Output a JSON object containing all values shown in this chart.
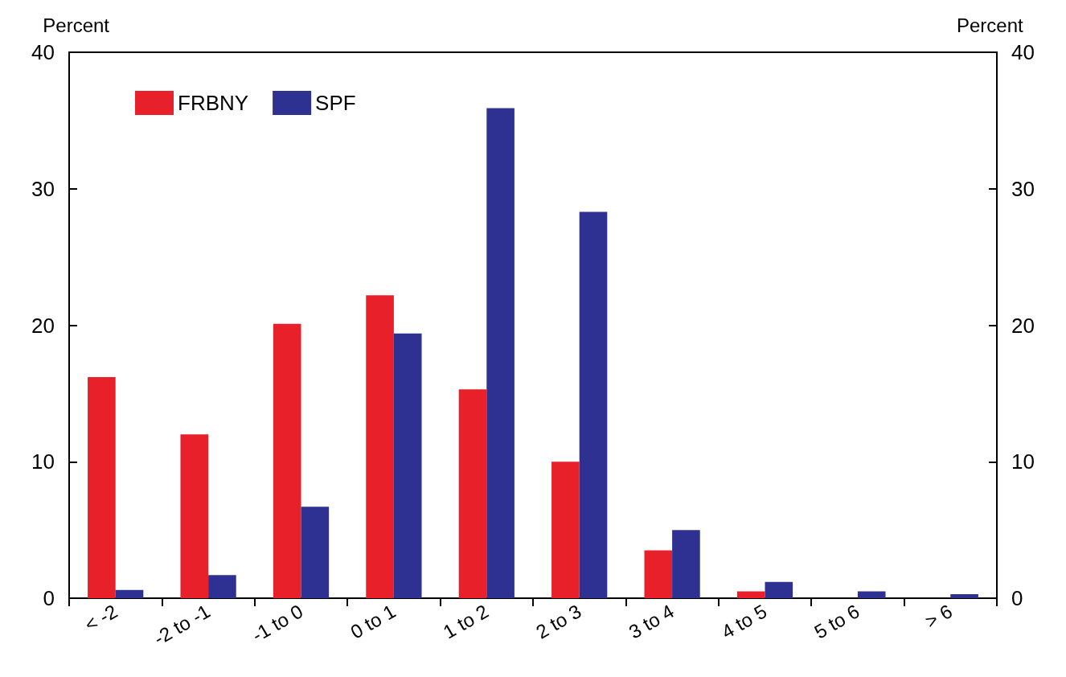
{
  "chart_data": {
    "type": "bar",
    "ylabel": "Percent",
    "y2label": "Percent",
    "categories": [
      "< -2",
      "-2 to -1",
      "-1 to 0",
      "0 to 1",
      "1 to 2",
      "2 to 3",
      "3 to 4",
      "4 to 5",
      "5 to 6",
      "> 6"
    ],
    "series": [
      {
        "name": "FRBNY",
        "color": "#e8202a",
        "values": [
          16.2,
          12.0,
          20.1,
          22.2,
          15.3,
          10.0,
          3.5,
          0.5,
          0,
          0
        ]
      },
      {
        "name": "SPF",
        "color": "#2e3192",
        "values": [
          0.6,
          1.7,
          6.7,
          19.4,
          35.9,
          28.3,
          5.0,
          1.2,
          0.5,
          0.3
        ]
      }
    ],
    "ylim": [
      0,
      40
    ],
    "yticks": [
      0,
      10,
      20,
      30,
      40
    ],
    "y2lim": [
      0,
      40
    ],
    "y2ticks": [
      0,
      10,
      20,
      30,
      40
    ],
    "grid": false,
    "legend": "top left"
  }
}
